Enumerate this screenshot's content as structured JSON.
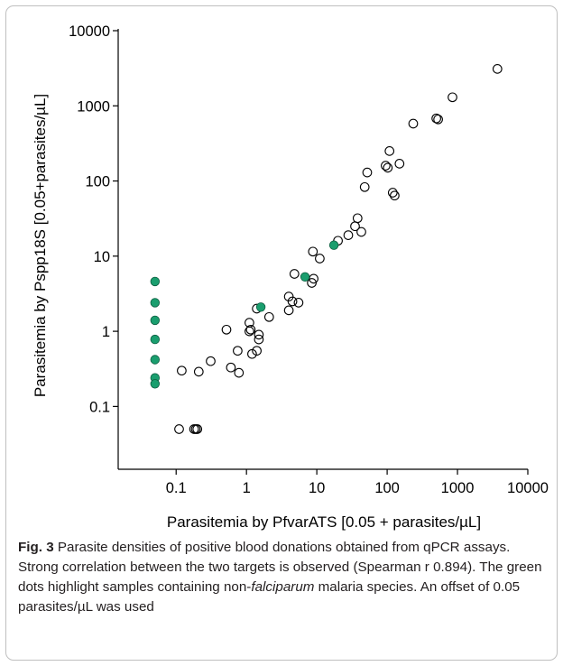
{
  "chart_data": {
    "type": "scatter",
    "title": "",
    "xlabel": "Parasitemia by PfvarATS [0.05 + parasites/µL]",
    "ylabel": "Parasitemia by Pspp18S [0.05+parasites/µL]",
    "xscale": "log",
    "yscale": "log",
    "xlim": [
      0.015,
      10000
    ],
    "ylim": [
      0.015,
      10000
    ],
    "grid": false,
    "legend": "none",
    "x_ticks": [
      {
        "value": 0.1,
        "label": "0.1"
      },
      {
        "value": 1,
        "label": "1"
      },
      {
        "value": 10,
        "label": "10"
      },
      {
        "value": 100,
        "label": "100"
      },
      {
        "value": 1000,
        "label": "1000"
      },
      {
        "value": 10000,
        "label": "10000"
      }
    ],
    "y_ticks": [
      {
        "value": 0.1,
        "label": "0.1"
      },
      {
        "value": 1,
        "label": "1"
      },
      {
        "value": 10,
        "label": "10"
      },
      {
        "value": 100,
        "label": "100"
      },
      {
        "value": 1000,
        "label": "1000"
      },
      {
        "value": 10000,
        "label": "10000"
      }
    ],
    "colors": {
      "open_marker_stroke": "#000000",
      "green_marker_fill": "#1a9e6e",
      "axis": "#000000"
    },
    "series": [
      {
        "marker": "open-circle",
        "points": [
          [
            0.11,
            0.05
          ],
          [
            0.18,
            0.05
          ],
          [
            0.19,
            0.05
          ],
          [
            0.2,
            0.05
          ],
          [
            0.12,
            0.3
          ],
          [
            0.21,
            0.29
          ],
          [
            0.31,
            0.4
          ],
          [
            0.6,
            0.33
          ],
          [
            0.78,
            0.28
          ],
          [
            0.75,
            0.55
          ],
          [
            0.52,
            1.05
          ],
          [
            1.1,
            1.0
          ],
          [
            1.15,
            1.05
          ],
          [
            1.1,
            1.3
          ],
          [
            1.2,
            0.5
          ],
          [
            1.4,
            0.55
          ],
          [
            1.5,
            0.78
          ],
          [
            1.5,
            0.9
          ],
          [
            1.4,
            2.0
          ],
          [
            2.1,
            1.55
          ],
          [
            4.0,
            1.9
          ],
          [
            4.0,
            2.9
          ],
          [
            4.5,
            2.5
          ],
          [
            4.8,
            5.8
          ],
          [
            5.5,
            2.4
          ],
          [
            8.5,
            4.4
          ],
          [
            9.0,
            5.0
          ],
          [
            8.8,
            11.5
          ],
          [
            11.0,
            9.3
          ],
          [
            20.0,
            16.0
          ],
          [
            28.0,
            19.0
          ],
          [
            35.0,
            25.0
          ],
          [
            38.0,
            32.0
          ],
          [
            43.0,
            21.0
          ],
          [
            48.0,
            83.0
          ],
          [
            52.0,
            130.0
          ],
          [
            95.0,
            160.0
          ],
          [
            102.0,
            150.0
          ],
          [
            108.0,
            250.0
          ],
          [
            120.0,
            70.0
          ],
          [
            128.0,
            64.0
          ],
          [
            150.0,
            170.0
          ],
          [
            235.0,
            580.0
          ],
          [
            500.0,
            680.0
          ],
          [
            530.0,
            660.0
          ],
          [
            850.0,
            1300.0
          ],
          [
            3700.0,
            3100.0
          ]
        ]
      },
      {
        "marker": "filled-circle-green",
        "points": [
          [
            0.05,
            4.6
          ],
          [
            0.05,
            2.4
          ],
          [
            0.05,
            1.4
          ],
          [
            0.05,
            0.78
          ],
          [
            0.05,
            0.42
          ],
          [
            0.05,
            0.24
          ],
          [
            0.05,
            0.2
          ],
          [
            1.6,
            2.1
          ],
          [
            6.8,
            5.3
          ],
          [
            17.5,
            14.0
          ]
        ]
      }
    ]
  },
  "caption": {
    "fig_label": "Fig. 3",
    "text_1": "  Parasite densities of positive blood donations obtained from qPCR assays. Strong correlation between the two targets is observed (Spearman r 0.894). The green dots highlight samples containing non-",
    "text_italic": "falciparum",
    "text_2": " malaria species. An offset of 0.05 parasites/µL was used"
  }
}
